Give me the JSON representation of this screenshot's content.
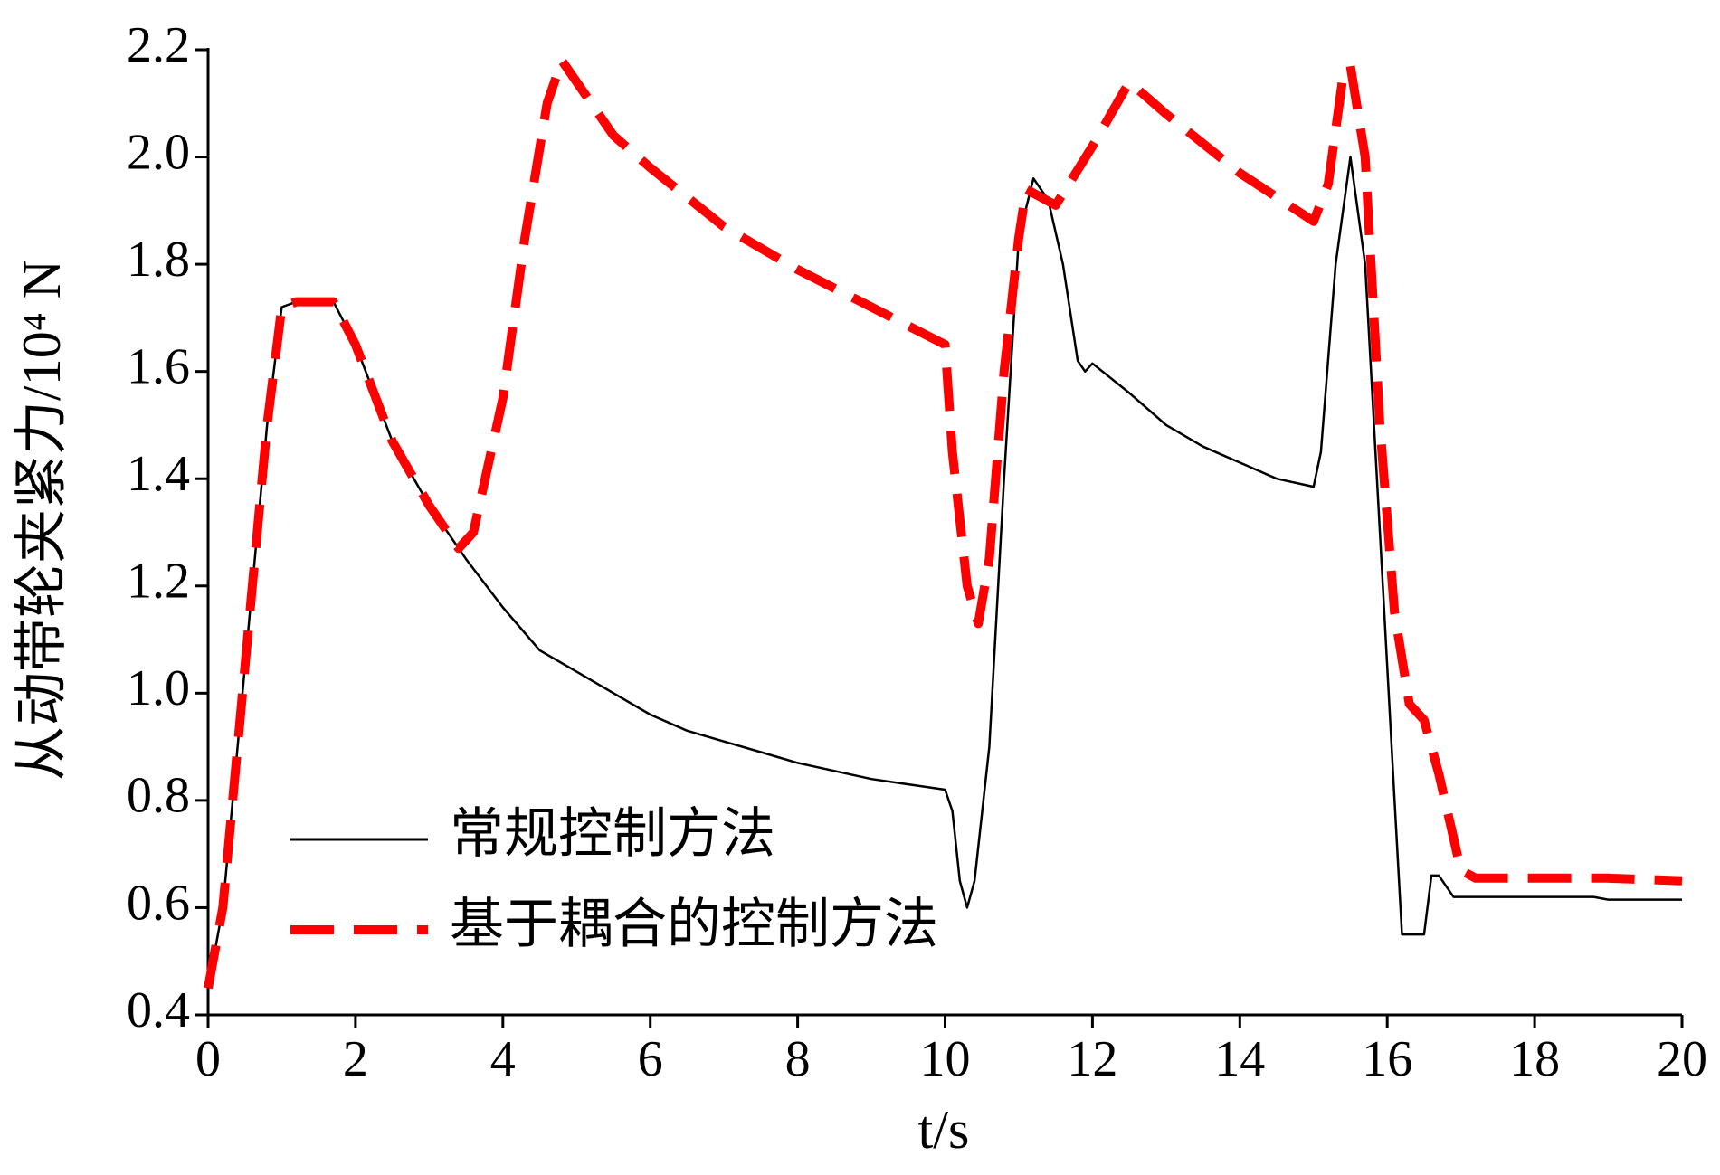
{
  "chart_data": {
    "type": "line",
    "x_label": "t/s",
    "y_label": "从动带轮夹紧力/10⁴ N",
    "xlim": [
      0,
      20
    ],
    "ylim": [
      0.4,
      2.2
    ],
    "xticks": [
      0,
      2,
      4,
      6,
      8,
      10,
      12,
      14,
      16,
      18,
      20
    ],
    "yticks": [
      0.4,
      0.6,
      0.8,
      {
        "value": 1,
        "label": "1.0"
      },
      1.2,
      1.4,
      1.6,
      1.8,
      {
        "value": 2,
        "label": "2.0"
      },
      2.2
    ],
    "series": [
      {
        "name": "常规控制方法",
        "color": "#000000",
        "dash": false,
        "x": [
          0,
          0.2,
          0.4,
          0.6,
          0.8,
          1.0,
          1.2,
          1.7,
          2.0,
          2.5,
          3,
          3.5,
          4,
          4.5,
          5,
          5.5,
          6,
          6.5,
          7,
          7.5,
          8,
          8.5,
          9,
          9.5,
          10,
          10.1,
          10.2,
          10.3,
          10.4,
          10.6,
          10.8,
          11,
          11.2,
          11.4,
          11.6,
          11.8,
          11.9,
          12,
          12.5,
          13,
          13.5,
          14,
          14.5,
          15,
          15.1,
          15.3,
          15.5,
          15.7,
          15.9,
          16.1,
          16.2,
          16.5,
          16.6,
          16.7,
          16.9,
          18,
          18.8,
          19,
          20
        ],
        "values": [
          0.45,
          0.6,
          0.9,
          1.2,
          1.5,
          1.72,
          1.73,
          1.73,
          1.65,
          1.47,
          1.35,
          1.25,
          1.16,
          1.08,
          1.04,
          1.0,
          0.96,
          0.93,
          0.91,
          0.89,
          0.87,
          0.855,
          0.84,
          0.83,
          0.82,
          0.78,
          0.65,
          0.6,
          0.65,
          0.9,
          1.4,
          1.85,
          1.96,
          1.92,
          1.8,
          1.62,
          1.6,
          1.615,
          1.56,
          1.5,
          1.46,
          1.43,
          1.4,
          1.385,
          1.45,
          1.8,
          2.0,
          1.8,
          1.3,
          0.8,
          0.55,
          0.55,
          0.66,
          0.66,
          0.62,
          0.62,
          0.62,
          0.615,
          0.615
        ]
      },
      {
        "name": "基于耦合的控制方法",
        "color": "#ff0000",
        "dash": true,
        "x": [
          0,
          0.2,
          0.4,
          0.6,
          0.8,
          1.0,
          1.2,
          1.7,
          2.0,
          2.5,
          3,
          3.4,
          3.6,
          4,
          4.3,
          4.6,
          4.8,
          5,
          5.5,
          6,
          7,
          8,
          9,
          10,
          10.1,
          10.3,
          10.45,
          10.6,
          10.8,
          11,
          11.1,
          11.5,
          12,
          12.5,
          13,
          14,
          15,
          15.2,
          15.4,
          15.5,
          15.7,
          15.9,
          16.1,
          16.3,
          16.5,
          16.7,
          17,
          17.2,
          18,
          19,
          20
        ],
        "values": [
          0.45,
          0.6,
          0.9,
          1.2,
          1.5,
          1.72,
          1.73,
          1.73,
          1.65,
          1.47,
          1.35,
          1.27,
          1.3,
          1.55,
          1.85,
          2.1,
          2.18,
          2.14,
          2.04,
          1.98,
          1.87,
          1.79,
          1.72,
          1.65,
          1.45,
          1.2,
          1.13,
          1.25,
          1.6,
          1.85,
          1.94,
          1.91,
          2.02,
          2.14,
          2.08,
          1.97,
          1.88,
          1.95,
          2.15,
          2.17,
          2.0,
          1.5,
          1.15,
          0.98,
          0.95,
          0.85,
          0.67,
          0.655,
          0.655,
          0.655,
          0.65
        ]
      }
    ]
  }
}
